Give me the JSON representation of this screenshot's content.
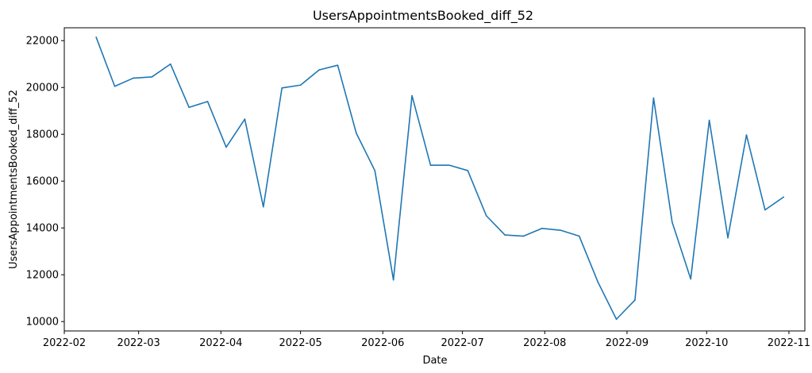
{
  "chart_data": {
    "type": "line",
    "title": "UsersAppointmentsBooked_diff_52",
    "xlabel": "Date",
    "ylabel": "UsersAppointmentsBooked_diff_52",
    "ylim": [
      9600,
      22550
    ],
    "xlim": [
      "2022-02-01",
      "2022-11-07"
    ],
    "grid": false,
    "color": "#1f77b4",
    "y_ticks": [
      10000,
      12000,
      14000,
      16000,
      18000,
      20000,
      22000
    ],
    "x_ticks": [
      "2022-02",
      "2022-03",
      "2022-04",
      "2022-05",
      "2022-06",
      "2022-07",
      "2022-08",
      "2022-09",
      "2022-10",
      "2022-11"
    ],
    "series": [
      {
        "x": [
          "2022-02-13",
          "2022-02-20",
          "2022-02-27",
          "2022-03-06",
          "2022-03-13",
          "2022-03-20",
          "2022-03-27",
          "2022-04-03",
          "2022-04-10",
          "2022-04-17",
          "2022-04-24",
          "2022-05-01",
          "2022-05-08",
          "2022-05-15",
          "2022-05-22",
          "2022-05-29",
          "2022-06-05",
          "2022-06-12",
          "2022-06-19",
          "2022-06-26",
          "2022-07-03",
          "2022-07-10",
          "2022-07-17",
          "2022-07-24",
          "2022-07-31",
          "2022-08-07",
          "2022-08-14",
          "2022-08-21",
          "2022-08-28",
          "2022-09-04",
          "2022-09-11",
          "2022-09-18",
          "2022-09-25",
          "2022-10-02",
          "2022-10-09",
          "2022-10-16",
          "2022-10-23",
          "2022-10-30"
        ],
        "y": [
          22150,
          20050,
          20400,
          20450,
          21000,
          19150,
          19400,
          17450,
          18650,
          14900,
          19980,
          20100,
          20750,
          20950,
          18050,
          16450,
          11780,
          19650,
          16680,
          16680,
          16450,
          14520,
          13700,
          13650,
          13980,
          13900,
          13650,
          11700,
          10100,
          10920,
          19550,
          14250,
          11820,
          18600,
          13580,
          17970,
          14770,
          15320
        ]
      }
    ]
  }
}
